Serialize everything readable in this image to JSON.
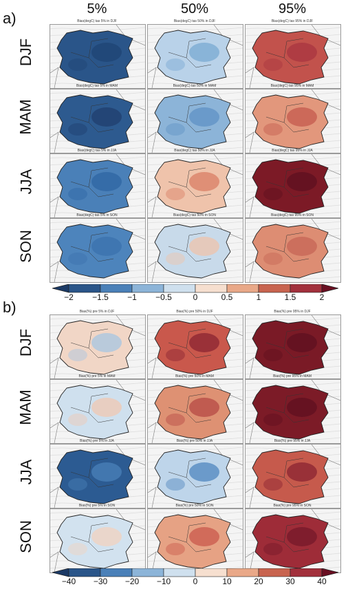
{
  "columns": [
    "5%",
    "50%",
    "95%"
  ],
  "seasons": [
    "DJF",
    "MAM",
    "JJA",
    "SON"
  ],
  "panels": [
    {
      "label": "a)",
      "variable": "tas",
      "titles": [
        [
          "Bias(degC) tas 5% in DJF",
          "Bias(degC) tas 50% in DJF",
          "Bias(degC) tas 95% in DJF"
        ],
        [
          "Bias(degC) tas 5% in MAM",
          "Bias(degC) tas 50% in MAM",
          "Bias(degC) tas 95% in MAM"
        ],
        [
          "Bias(degC) tas 5% in JJA",
          "Bias(degC) tas 50% in JJA",
          "Bias(degC) tas 95% in JJA"
        ],
        [
          "Bias(degC) tas 5% in SON",
          "Bias(degC) tas 50% in SON",
          "Bias(degC) tas 95% in SON"
        ]
      ],
      "fills": [
        [
          "#2a5589",
          "#b9d2e9",
          "#c2524c"
        ],
        [
          "#2d5a8f",
          "#8cb4d8",
          "#e2977c"
        ],
        [
          "#4a80b8",
          "#efc3ab",
          "#7c1a26"
        ],
        [
          "#4d84bc",
          "#c8daea",
          "#dd8d73"
        ]
      ],
      "accents": [
        [
          "#1f4474",
          "#7aa9d2",
          "#a83540"
        ],
        [
          "#203f6e",
          "#5f92c6",
          "#c45a4e"
        ],
        [
          "#2f66a3",
          "#d97e64",
          "#5e1020"
        ],
        [
          "#3b72ad",
          "#efc3ab",
          "#c66655"
        ]
      ],
      "colorbar": {
        "ticks": [
          "−2",
          "−1.5",
          "−1",
          "−0.5",
          "0",
          "0.5",
          "1",
          "1.5",
          "2"
        ],
        "colors": [
          "#2a5589",
          "#4a80b8",
          "#8cb4d8",
          "#cfe0ee",
          "#f6dfcf",
          "#e9a888",
          "#c8644f",
          "#a2303c"
        ],
        "low_color": "#1b3a66",
        "high_color": "#6a0f22"
      }
    },
    {
      "label": "b)",
      "variable": "pre",
      "titles": [
        [
          "Bias(%) pre 5% in DJF",
          "Bias(%) pre 50% in DJF",
          "Bias(%) pre 95% in DJF"
        ],
        [
          "Bias(%) pre 5% in MAM",
          "Bias(%) pre 50% in MAM",
          "Bias(%) pre 95% in MAM"
        ],
        [
          "Bias(%) pre 5% in JJA",
          "Bias(%) pre 50% in JJA",
          "Bias(%) pre 95% in JJA"
        ],
        [
          "Bias(%) pre 5% in SON",
          "Bias(%) pre 50% in SON",
          "Bias(%) pre 95% in SON"
        ]
      ],
      "fills": [
        [
          "#f1d6c6",
          "#c9584c",
          "#7a1a26"
        ],
        [
          "#cfe0ee",
          "#de9173",
          "#7c1b27"
        ],
        [
          "#2c5b92",
          "#bed5ea",
          "#c65a4c"
        ],
        [
          "#d2e2ef",
          "#e6a284",
          "#9e2c38"
        ]
      ],
      "accents": [
        [
          "#a6c5e2",
          "#8a2432",
          "#5f1020"
        ],
        [
          "#f0c8b2",
          "#b64a44",
          "#5f1020"
        ],
        [
          "#4a80b8",
          "#4f86bf",
          "#8a2432"
        ],
        [
          "#f1d2bf",
          "#c9584c",
          "#74182a"
        ]
      ],
      "colorbar": {
        "ticks": [
          "−40",
          "−30",
          "−20",
          "−10",
          "0",
          "10",
          "20",
          "30",
          "40"
        ],
        "colors": [
          "#2a5589",
          "#4a80b8",
          "#8cb4d8",
          "#cfe0ee",
          "#f6dfcf",
          "#e9a888",
          "#c8644f",
          "#a2303c"
        ],
        "low_color": "#1b3a66",
        "high_color": "#6a0f22"
      }
    }
  ]
}
